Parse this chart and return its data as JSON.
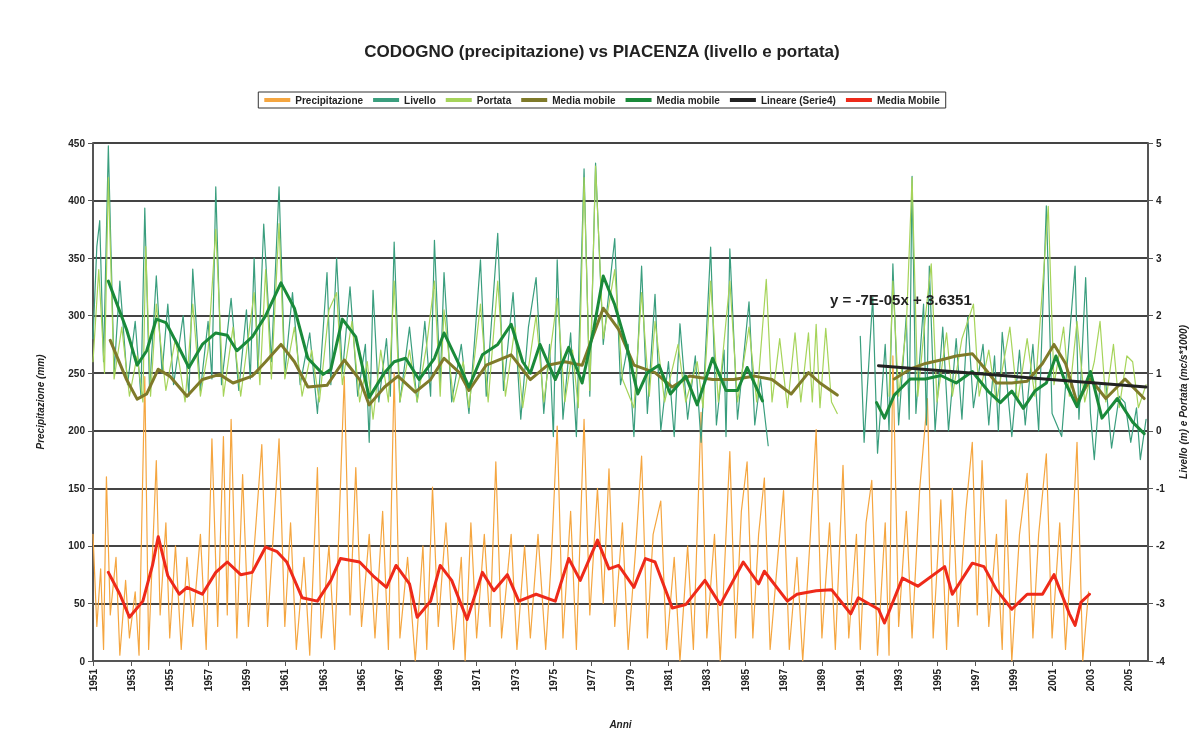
{
  "chart_data": {
    "type": "line",
    "title": "CODOGNO (precipitazione) vs PIACENZA (livello e portata)",
    "xlabel": "Anni",
    "ylabel": "Precipitazione (mm)",
    "y2label": "Livello (m) e Portata (mc/s*1000)",
    "xlim": [
      1951,
      2006
    ],
    "xticks": [
      1951,
      1953,
      1955,
      1957,
      1959,
      1961,
      1963,
      1965,
      1967,
      1969,
      1971,
      1973,
      1975,
      1977,
      1979,
      1981,
      1983,
      1985,
      1987,
      1989,
      1991,
      1993,
      1995,
      1997,
      1999,
      2001,
      2003,
      2005
    ],
    "ylim": [
      0,
      450
    ],
    "yticks": [
      0,
      50,
      100,
      150,
      200,
      250,
      300,
      350,
      400,
      450
    ],
    "y2lim": [
      -4,
      5
    ],
    "y2ticks": [
      -4,
      -3,
      -2,
      -1,
      0,
      1,
      2,
      3,
      4,
      5
    ],
    "grid": "y",
    "legend": "top",
    "marker": "none",
    "line_style": "solid",
    "annotations": [
      "y = -7E-05x + 3.6351"
    ],
    "series": [
      {
        "name": "Precipitazione",
        "color": "#f5a640",
        "x": [
          1951.0,
          1951.2,
          1951.4,
          1951.55,
          1951.7,
          1951.9,
          1952.2,
          1952.4,
          1952.7,
          1952.9,
          1953.2,
          1953.4,
          1953.7,
          1953.9,
          1954.3,
          1954.5,
          1954.8,
          1955.0,
          1955.3,
          1955.6,
          1955.9,
          1956.2,
          1956.6,
          1956.9,
          1957.2,
          1957.5,
          1957.8,
          1958.0,
          1958.2,
          1958.5,
          1958.8,
          1959.1,
          1959.5,
          1959.8,
          1960.1,
          1960.4,
          1960.7,
          1961.0,
          1961.3,
          1961.6,
          1962.0,
          1962.3,
          1962.7,
          1962.9,
          1963.3,
          1963.6,
          1964.1,
          1964.4,
          1964.7,
          1965.0,
          1965.4,
          1965.7,
          1966.1,
          1966.4,
          1966.7,
          1967.0,
          1967.4,
          1967.8,
          1968.2,
          1968.4,
          1968.7,
          1969.0,
          1969.4,
          1969.8,
          1970.2,
          1970.4,
          1970.7,
          1971.0,
          1971.4,
          1971.7,
          1972.0,
          1972.3,
          1972.8,
          1973.1,
          1973.5,
          1973.8,
          1974.2,
          1974.6,
          1974.9,
          1975.2,
          1975.5,
          1975.9,
          1976.2,
          1976.6,
          1976.9,
          1977.3,
          1977.6,
          1977.9,
          1978.2,
          1978.6,
          1978.9,
          1979.3,
          1979.6,
          1979.9,
          1980.2,
          1980.6,
          1980.9,
          1981.3,
          1981.6,
          1982.0,
          1982.3,
          1982.7,
          1983.0,
          1983.4,
          1983.7,
          1984.2,
          1984.5,
          1984.8,
          1985.1,
          1985.4,
          1985.7,
          1986.0,
          1986.3,
          1986.7,
          1987.0,
          1987.3,
          1987.7,
          1988.0,
          1988.4,
          1988.7,
          1989.0,
          1989.4,
          1989.7,
          1990.1,
          1990.4,
          1990.8,
          1991.0,
          1991.3,
          1991.6,
          1991.9,
          1992.3,
          1992.5,
          1992.7,
          1993.0,
          1993.4,
          1993.7,
          1994.1,
          1994.5,
          1994.8,
          1995.2,
          1995.5,
          1995.8,
          1996.1,
          1996.5,
          1996.84,
          1997.1,
          1997.35,
          1997.7,
          1998.1,
          1998.4,
          1998.6,
          1998.9,
          1999.3,
          1999.7,
          2000.0,
          2000.3,
          2000.7,
          2001.0,
          2001.4,
          2001.7,
          2002.0,
          2002.3,
          2002.6,
          2002.9
        ],
        "values": [
          110,
          30,
          80,
          10,
          160,
          40,
          90,
          5,
          70,
          20,
          60,
          5,
          247,
          10,
          174,
          40,
          120,
          20,
          100,
          10,
          90,
          30,
          110,
          10,
          193,
          30,
          195,
          40,
          210,
          20,
          162,
          30,
          120,
          188,
          30,
          110,
          193,
          30,
          120,
          10,
          90,
          5,
          168,
          20,
          100,
          10,
          247,
          40,
          168,
          30,
          110,
          20,
          130,
          10,
          250,
          20,
          90,
          0,
          100,
          10,
          151,
          30,
          120,
          10,
          90,
          0,
          120,
          20,
          110,
          30,
          173,
          20,
          110,
          10,
          100,
          20,
          110,
          10,
          90,
          204,
          20,
          130,
          10,
          210,
          40,
          150,
          50,
          167,
          30,
          120,
          10,
          100,
          178,
          20,
          110,
          139,
          10,
          90,
          0,
          100,
          10,
          216,
          20,
          110,
          0,
          182,
          20,
          130,
          173,
          20,
          110,
          159,
          10,
          90,
          148,
          10,
          90,
          0,
          110,
          201,
          20,
          120,
          10,
          170,
          20,
          110,
          10,
          120,
          157,
          5,
          120,
          5,
          265,
          30,
          130,
          20,
          150,
          228,
          20,
          140,
          10,
          150,
          30,
          130,
          190,
          40,
          174,
          30,
          110,
          10,
          140,
          0,
          110,
          163,
          20,
          110,
          180,
          20,
          120,
          10,
          90,
          190,
          0,
          60
        ]
      },
      {
        "name": "Livello",
        "color": "#3a9e7e",
        "axis": "y2",
        "x": [
          1951.0,
          1951.2,
          1951.35,
          1951.55,
          1951.8,
          1952.1,
          1952.4,
          1952.8,
          1953.2,
          1953.5,
          1953.7,
          1953.95,
          1954.3,
          1954.6,
          1954.9,
          1955.2,
          1955.7,
          1956.0,
          1956.2,
          1956.6,
          1957.0,
          1957.2,
          1957.4,
          1957.7,
          1958.2,
          1958.6,
          1959.0,
          1959.2,
          1959.4,
          1959.6,
          1959.9,
          1960.3,
          1960.7,
          1961.0,
          1961.4,
          1961.8,
          1962.3,
          1962.7,
          1963.2,
          1963.4,
          1963.7,
          1964.0,
          1964.4,
          1964.8,
          1965.2,
          1965.4,
          1965.6,
          1965.9,
          1966.3,
          1966.5,
          1966.7,
          1967.0,
          1967.5,
          1967.9,
          1968.3,
          1968.6,
          1968.8,
          1969.1,
          1969.3,
          1969.7,
          1970.2,
          1970.6,
          1970.9,
          1971.2,
          1971.5,
          1972.1,
          1972.4,
          1972.9,
          1973.3,
          1973.7,
          1974.1,
          1974.5,
          1974.8,
          1975.0,
          1975.2,
          1975.5,
          1975.9,
          1976.2,
          1976.6,
          1976.9,
          1977.2,
          1977.6,
          1978.2,
          1978.5,
          1978.9,
          1979.2,
          1979.6,
          1979.9,
          1980.3,
          1980.6,
          1981.0,
          1981.3,
          1981.6,
          1982.0,
          1982.4,
          1982.7,
          1983.2,
          1983.5,
          1983.9,
          1984.0,
          1984.2,
          1984.6,
          1985.2,
          1985.5,
          1985.8,
          1986.2,
          1988.5,
          1991.0,
          1991.2,
          1991.65,
          1991.9,
          1992.3,
          1992.5,
          1992.7,
          1993.0,
          1993.4,
          1993.55,
          1993.7,
          1993.9,
          1994.3,
          1994.45,
          1994.6,
          1994.9,
          1995.3,
          1995.6,
          1996.0,
          1996.3,
          1996.6,
          1996.9,
          1997.4,
          1997.7,
          1998.0,
          1998.2,
          1998.4,
          1998.9,
          1999.3,
          1999.6,
          2000.0,
          2000.3,
          2000.7,
          2001.0,
          2001.5,
          2001.8,
          2002.2,
          2002.4,
          2002.75,
          2003.0,
          2003.2,
          2003.5,
          2003.8,
          2004.1,
          2004.5,
          2004.8,
          2005.1,
          2005.4,
          2005.6,
          2005.9
        ],
        "values": [
          1.6,
          3.2,
          3.65,
          1.2,
          4.95,
          1.0,
          2.6,
          0.8,
          1.9,
          0.6,
          3.87,
          0.7,
          2.69,
          1.0,
          2.2,
          0.8,
          2.0,
          0.6,
          2.81,
          0.7,
          1.9,
          0.9,
          4.24,
          0.8,
          2.3,
          0.7,
          2.1,
          0.9,
          3.0,
          1.0,
          3.59,
          1.2,
          4.24,
          1.0,
          2.4,
          0.8,
          1.7,
          0.3,
          2.75,
          0.8,
          3.0,
          1.0,
          2.5,
          0.6,
          1.5,
          -0.2,
          2.44,
          0.5,
          1.6,
          0.6,
          3.28,
          0.5,
          1.8,
          0.5,
          1.9,
          0.6,
          3.31,
          0.8,
          2.75,
          0.5,
          1.5,
          0.3,
          1.6,
          2.97,
          0.6,
          3.43,
          0.7,
          2.4,
          0.2,
          1.8,
          2.66,
          0.3,
          1.5,
          -0.1,
          2.97,
          0.2,
          1.7,
          -0.1,
          4.55,
          0.6,
          4.65,
          1.5,
          3.34,
          0.8,
          1.5,
          -0.1,
          2.86,
          0.3,
          2.37,
          0.0,
          1.2,
          -0.1,
          1.86,
          0.2,
          1.3,
          -0.2,
          3.19,
          0.1,
          1.4,
          -0.1,
          3.16,
          0.2,
          2.24,
          0.1,
          0.9,
          -0.26,
          null,
          1.64,
          -0.2,
          2.32,
          -0.39,
          1.5,
          0.0,
          2.9,
          0.1,
          2.0,
          0.2,
          4.42,
          0.3,
          2.2,
          0.1,
          2.86,
          0.0,
          1.8,
          0.0,
          1.6,
          0.2,
          1.98,
          0.4,
          1.5,
          0.1,
          1.3,
          0.0,
          1.71,
          -0.1,
          1.4,
          0.1,
          1.5,
          0.0,
          3.91,
          0.3,
          -0.1,
          1.2,
          2.86,
          0.2,
          2.66,
          0.3,
          -0.5,
          0.8,
          0.83,
          -0.3,
          0.6,
          0.49,
          -0.2,
          0.4,
          -0.5,
          0.2
        ]
      },
      {
        "name": "Portata",
        "color": "#a6d45a",
        "axis": "y2",
        "x": [
          1951.0,
          1951.3,
          1951.6,
          1951.8,
          1952.1,
          1952.5,
          1952.9,
          1953.3,
          1953.6,
          1953.75,
          1954.0,
          1954.3,
          1954.8,
          1955.3,
          1955.8,
          1956.2,
          1956.6,
          1957.0,
          1957.4,
          1957.8,
          1958.3,
          1958.7,
          1959.4,
          1959.7,
          1960.0,
          1960.3,
          1960.7,
          1961.0,
          1961.5,
          1961.9,
          1962.4,
          1962.8,
          1963.3,
          1963.7,
          1964.0,
          1964.5,
          1964.9,
          1965.3,
          1965.6,
          1966.0,
          1966.4,
          1966.7,
          1967.0,
          1967.5,
          1967.9,
          1968.4,
          1968.8,
          1969.1,
          1969.3,
          1969.8,
          1970.3,
          1970.6,
          1971.2,
          1971.6,
          1972.1,
          1972.5,
          1973.0,
          1973.4,
          1974.1,
          1974.5,
          1975.2,
          1975.6,
          1976.0,
          1976.3,
          1976.6,
          1976.9,
          1977.2,
          1977.6,
          1978.2,
          1978.6,
          1979.2,
          1979.6,
          1980.0,
          1980.3,
          1980.8,
          1981.5,
          1981.9,
          1982.5,
          1982.8,
          1983.2,
          1983.6,
          1984.2,
          1984.6,
          1985.2,
          1985.6,
          1986.1,
          1986.4,
          1986.8,
          1987.2,
          1987.6,
          1987.9,
          1988.3,
          1988.5,
          1988.7,
          1988.9,
          1989.2,
          1989.5,
          1989.8,
          1991.0,
          1992.5,
          1992.7,
          1993.0,
          1993.4,
          1993.7,
          1994.0,
          1994.4,
          1994.7,
          1995.0,
          1995.5,
          1995.8,
          1996.3,
          1996.9,
          1997.2,
          1997.7,
          1998.1,
          1998.8,
          1999.2,
          1999.7,
          2000.1,
          2000.8,
          2001.1,
          2001.6,
          2001.9,
          2002.3,
          2002.7,
          2003.2,
          2003.5,
          2003.8,
          2004.2,
          2004.5,
          2004.9,
          2005.2,
          2005.5,
          2005.9
        ],
        "values": [
          1.2,
          2.8,
          1.0,
          4.4,
          0.9,
          1.8,
          0.6,
          1.3,
          0.5,
          3.2,
          0.6,
          2.2,
          0.7,
          1.6,
          0.5,
          2.2,
          0.6,
          1.4,
          3.5,
          0.6,
          1.8,
          0.6,
          2.4,
          0.8,
          2.8,
          0.9,
          3.6,
          0.9,
          1.8,
          0.6,
          1.4,
          0.5,
          2.1,
          2.4,
          0.8,
          1.9,
          0.5,
          1.2,
          0.2,
          1.4,
          0.5,
          2.6,
          0.5,
          1.4,
          0.5,
          1.5,
          2.6,
          0.6,
          2.1,
          0.5,
          1.2,
          0.4,
          2.2,
          0.5,
          2.6,
          0.6,
          1.8,
          0.4,
          2.0,
          0.5,
          2.3,
          0.5,
          1.4,
          0.4,
          4.4,
          0.7,
          4.6,
          1.6,
          2.8,
          0.9,
          0.4,
          2.4,
          0.6,
          1.9,
          0.5,
          1.5,
          0.5,
          1.2,
          0.4,
          2.6,
          0.5,
          2.6,
          0.5,
          1.8,
          0.5,
          2.63,
          0.5,
          1.6,
          0.4,
          1.7,
          0.5,
          1.7,
          0.5,
          1.85,
          0.4,
          1.78,
          0.5,
          0.3,
          null,
          0.6,
          2.6,
          0.6,
          1.8,
          4.4,
          0.6,
          2.0,
          2.9,
          0.5,
          1.7,
          0.6,
          1.6,
          2.2,
          0.6,
          1.4,
          0.5,
          1.8,
          0.5,
          1.6,
          0.6,
          3.9,
          0.8,
          1.8,
          0.6,
          1.9,
          0.5,
          1.2,
          1.9,
          0.5,
          1.5,
          0.4,
          1.3,
          1.2,
          0.4,
          0.8
        ]
      },
      {
        "name": "Media mobile",
        "color": "#7f7a2a",
        "axis": "y2",
        "x": [
          1951.9,
          1952.75,
          1953.3,
          1953.8,
          1954.4,
          1955.0,
          1955.9,
          1956.7,
          1957.6,
          1958.3,
          1959.3,
          1960.0,
          1960.8,
          1961.5,
          1962.2,
          1963.2,
          1964.1,
          1964.9,
          1965.4,
          1966.2,
          1966.9,
          1967.8,
          1968.6,
          1969.3,
          1970.1,
          1970.6,
          1971.5,
          1972.8,
          1973.8,
          1974.7,
          1975.6,
          1976.5,
          1977.6,
          1978.4,
          1979.2,
          1980.3,
          1981.2,
          1982.1,
          1983.3,
          1984.4,
          1985.5,
          1986.4,
          1987.4,
          1988.3,
          1988.9,
          1989.8,
          1991.0,
          1992.77,
          1993.6,
          1994.4,
          1995.2,
          1996.0,
          1996.84,
          1997.45,
          1998.1,
          1998.9,
          1999.7,
          2000.5,
          2001.1,
          2001.7,
          2002.3,
          2003.0,
          2003.8,
          2004.8,
          2005.8
        ],
        "values": [
          1.57,
          0.89,
          0.55,
          0.64,
          1.07,
          0.95,
          0.6,
          0.89,
          0.98,
          0.83,
          0.95,
          1.2,
          1.5,
          1.2,
          0.76,
          0.79,
          1.23,
          0.89,
          0.45,
          0.76,
          0.95,
          0.67,
          0.89,
          1.26,
          1.01,
          0.7,
          1.14,
          1.32,
          0.89,
          1.14,
          1.2,
          1.14,
          2.13,
          1.76,
          1.14,
          1.01,
          0.76,
          0.95,
          0.89,
          0.89,
          0.95,
          0.89,
          0.64,
          1.01,
          0.83,
          0.62,
          null,
          0.9,
          1.07,
          1.17,
          1.23,
          1.3,
          1.34,
          1.1,
          0.83,
          0.83,
          0.86,
          1.17,
          1.5,
          1.17,
          0.49,
          0.9,
          0.56,
          0.9,
          0.56
        ]
      },
      {
        "name": "Media mobile",
        "color": "#1a8a3a",
        "axis": "y2",
        "x": [
          1951.8,
          1952.75,
          1953.3,
          1953.8,
          1954.3,
          1954.8,
          1955.4,
          1956.0,
          1956.7,
          1957.4,
          1958.0,
          1958.5,
          1959.3,
          1960.0,
          1960.8,
          1961.5,
          1962.2,
          1963.0,
          1963.4,
          1964.0,
          1964.7,
          1965.4,
          1966.2,
          1966.7,
          1967.3,
          1968.0,
          1968.8,
          1969.3,
          1970.1,
          1970.6,
          1971.3,
          1972.1,
          1972.8,
          1973.4,
          1973.8,
          1974.3,
          1975.1,
          1975.8,
          1976.5,
          1977.1,
          1977.6,
          1978.2,
          1978.8,
          1979.4,
          1979.9,
          1980.5,
          1981.1,
          1981.9,
          1982.5,
          1983.3,
          1984.0,
          1984.6,
          1985.1,
          1985.9,
          1988.5,
          1991.85,
          1992.26,
          1992.77,
          1993.6,
          1994.4,
          1995.2,
          1996.0,
          1996.84,
          1997.66,
          1998.3,
          1998.9,
          1999.5,
          2000.1,
          2000.7,
          2001.2,
          2001.7,
          2002.3,
          2003.0,
          2003.6,
          2004.4,
          2005.2,
          2005.8
        ],
        "values": [
          2.6,
          1.76,
          1.14,
          1.39,
          1.94,
          1.88,
          1.5,
          1.1,
          1.5,
          1.7,
          1.66,
          1.39,
          1.63,
          2.0,
          2.57,
          2.13,
          1.26,
          0.98,
          1.07,
          1.94,
          1.63,
          0.58,
          1.01,
          1.2,
          1.26,
          0.89,
          1.26,
          1.7,
          1.14,
          0.76,
          1.32,
          1.5,
          1.85,
          1.2,
          1.0,
          1.5,
          0.89,
          1.45,
          0.83,
          1.76,
          2.69,
          2.19,
          1.5,
          0.64,
          1.01,
          1.14,
          0.64,
          0.95,
          0.45,
          1.26,
          0.7,
          0.7,
          1.1,
          0.52,
          null,
          0.49,
          0.22,
          0.62,
          0.9,
          0.9,
          0.96,
          0.83,
          1.03,
          0.69,
          0.49,
          0.69,
          0.39,
          0.69,
          0.83,
          1.3,
          0.83,
          0.42,
          1.03,
          0.22,
          0.56,
          0.15,
          -0.05
        ]
      },
      {
        "name": "Lineare (Serie4)",
        "color": "#222222",
        "axis": "y2",
        "x": [
          1991.95,
          2005.9
        ],
        "values": [
          1.13,
          0.76
        ]
      },
      {
        "name": "Media Mobile",
        "color": "#ee2a1a",
        "x": [
          1951.8,
          1952.4,
          1952.9,
          1953.6,
          1954.1,
          1954.4,
          1954.9,
          1955.5,
          1955.9,
          1956.7,
          1957.4,
          1958.0,
          1958.7,
          1959.3,
          1960.0,
          1960.6,
          1961.1,
          1961.9,
          1962.7,
          1963.4,
          1963.9,
          1964.9,
          1965.6,
          1966.3,
          1966.8,
          1967.5,
          1967.9,
          1968.6,
          1969.1,
          1969.7,
          1970.5,
          1971.3,
          1971.9,
          1972.6,
          1973.2,
          1974.1,
          1975.1,
          1975.8,
          1976.4,
          1977.3,
          1977.9,
          1978.4,
          1979.2,
          1979.8,
          1980.3,
          1981.2,
          1981.9,
          1982.9,
          1983.7,
          1984.9,
          1985.7,
          1986.0,
          1987.2,
          1987.7,
          1988.7,
          1989.5,
          1990.5,
          1990.9,
          1991.95,
          1992.26,
          1993.2,
          1994.0,
          1995.4,
          1995.8,
          1996.84,
          1997.45,
          1998.1,
          1998.9,
          1999.7,
          2000.5,
          2001.1,
          2001.9,
          2002.2,
          2002.5,
          2002.95
        ],
        "values": [
          77,
          58,
          38,
          52,
          83,
          108,
          74,
          58,
          64,
          58,
          77,
          86,
          75,
          77,
          99,
          95,
          86,
          55,
          52,
          70,
          89,
          86,
          74,
          64,
          83,
          67,
          38,
          52,
          83,
          70,
          36,
          77,
          61,
          75,
          52,
          58,
          52,
          89,
          70,
          105,
          80,
          83,
          64,
          89,
          86,
          46,
          49,
          70,
          49,
          86,
          67,
          78,
          52,
          58,
          61,
          62,
          41,
          55,
          45,
          33,
          72,
          65,
          82,
          58,
          85,
          82,
          62,
          45,
          58,
          58,
          75,
          41,
          31,
          51,
          58
        ]
      }
    ]
  }
}
